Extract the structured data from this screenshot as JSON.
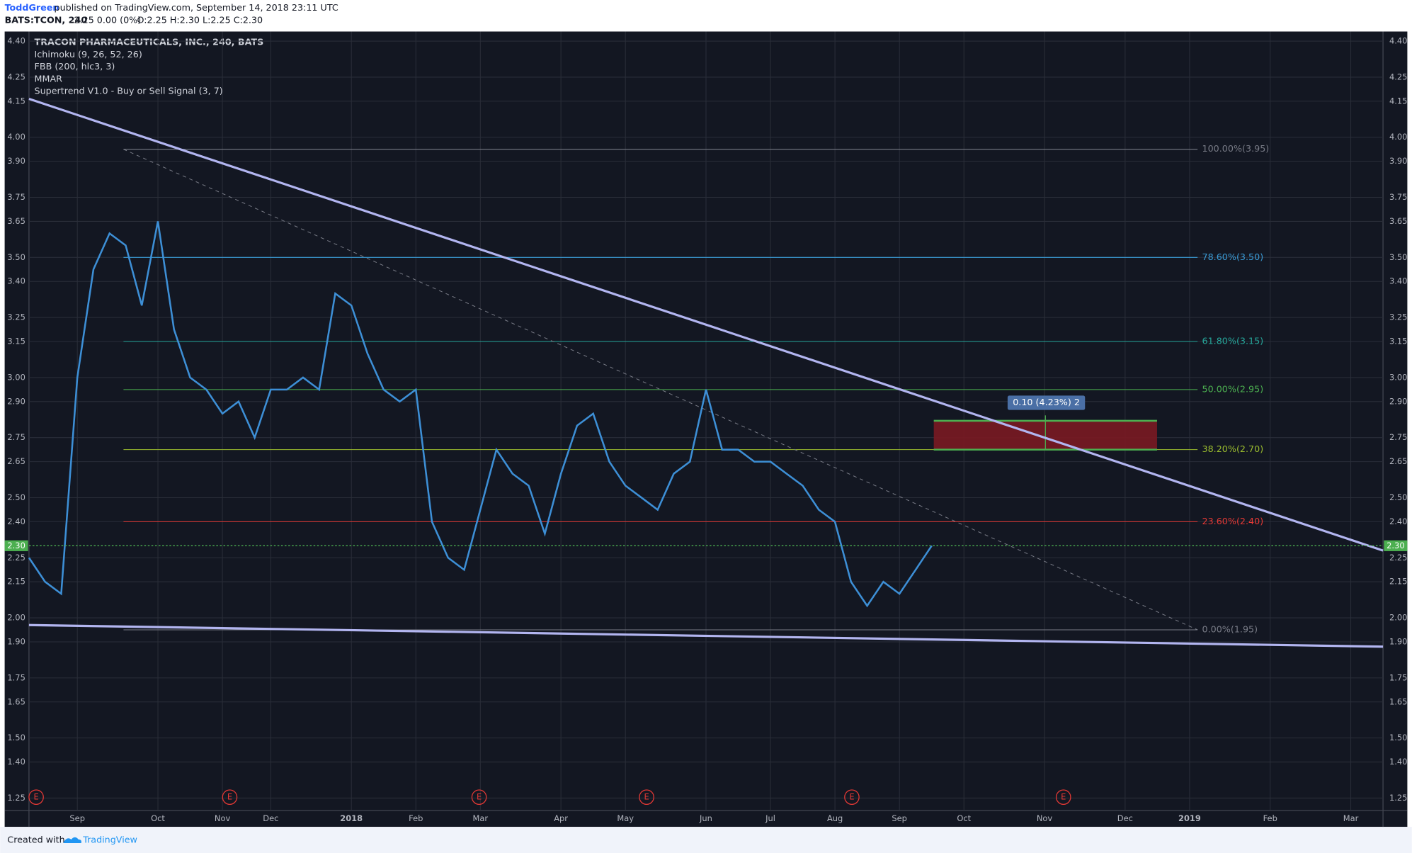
{
  "header": {
    "author": "ToddGreen",
    "published": "published on TradingView.com, September 14, 2018 23:11 UTC",
    "symbol": "BATS:TCON, 240",
    "change": "2.25 0.00 (0%)",
    "ohlc": "O:2.25 H:2.30 L:2.25 C:2.30"
  },
  "chart_data": {
    "type": "line",
    "title": "TRACON PHARMACEUTICALS, INC., 240, BATS",
    "indicators": [
      "Ichimoku (9, 26, 52, 26)",
      "FBB (200, hlc3, 3)",
      "MMAR",
      "Supertrend V1.0 - Buy or Sell Signal (3, 7)"
    ],
    "categories": [
      null,
      null,
      null,
      "Sep",
      null,
      null,
      null,
      null,
      "Oct",
      null,
      null,
      null,
      "Nov",
      null,
      null,
      "Dec",
      null,
      null,
      null,
      null,
      "2018",
      null,
      null,
      null,
      "Feb",
      null,
      null,
      null,
      "Mar",
      null,
      null,
      null,
      null,
      "Apr",
      null,
      null,
      null,
      "May",
      null,
      null,
      null,
      null,
      "Jun",
      null,
      null,
      null,
      "Jul",
      null,
      null,
      null,
      "Aug",
      null,
      null,
      null,
      "Sep",
      null,
      null,
      null,
      "Oct",
      null,
      null,
      null,
      null,
      "Nov",
      null,
      null,
      null,
      null,
      "Dec",
      null,
      null,
      null,
      "2019",
      null,
      null,
      null,
      null,
      "Feb",
      null,
      null,
      null,
      null,
      "Mar",
      null,
      null
    ],
    "values": [
      2.25,
      2.15,
      2.1,
      3.0,
      3.45,
      3.6,
      3.55,
      3.3,
      3.65,
      3.2,
      3.0,
      2.95,
      2.85,
      2.9,
      2.75,
      2.95,
      2.95,
      3.0,
      2.95,
      3.35,
      3.3,
      3.1,
      2.95,
      2.9,
      2.95,
      2.4,
      2.25,
      2.2,
      2.45,
      2.7,
      2.6,
      2.55,
      2.35,
      2.6,
      2.8,
      2.85,
      2.65,
      2.55,
      2.5,
      2.45,
      2.6,
      2.65,
      2.95,
      2.7,
      2.7,
      2.65,
      2.65,
      2.6,
      2.55,
      2.45,
      2.4,
      2.15,
      2.05,
      2.15,
      2.1,
      2.2,
      2.3,
      null,
      null,
      null,
      null,
      null,
      null,
      null,
      null,
      null,
      null,
      null,
      null,
      null,
      null,
      null,
      null,
      null,
      null,
      null,
      null,
      null,
      null,
      null,
      null,
      null,
      null,
      null,
      null
    ],
    "color": "#3d8fd6",
    "ylim": [
      1.13,
      4.44
    ],
    "yticks": [
      {
        "value": 4.4,
        "label": "4.40"
      },
      4.25,
      4.15,
      {
        "value": 4.0,
        "label": "4.00"
      },
      {
        "value": 3.9,
        "label": "3.90"
      },
      3.75,
      3.65,
      {
        "value": 3.5,
        "label": "3.50"
      },
      {
        "value": 3.4,
        "label": "3.40"
      },
      3.25,
      3.15,
      {
        "value": 3.0,
        "label": "3.00"
      },
      {
        "value": 2.9,
        "label": "2.90"
      },
      2.75,
      2.65,
      {
        "value": 2.5,
        "label": "2.50"
      },
      {
        "value": 2.4,
        "label": "2.40"
      },
      2.25,
      2.15,
      {
        "value": 2.0,
        "label": "2.00"
      },
      {
        "value": 1.9,
        "label": "1.90"
      },
      1.75,
      1.65,
      {
        "value": 1.5,
        "label": "1.50"
      },
      {
        "value": 1.4,
        "label": "1.40"
      },
      1.25
    ],
    "grid": true,
    "fib_levels": [
      {
        "value": 3.95,
        "label": "100.00%(3.95)",
        "color": "#787b86"
      },
      {
        "value": 3.5,
        "label": "78.60%(3.50)",
        "color": "#3a9bd6"
      },
      {
        "value": 3.15,
        "label": "61.80%(3.15)",
        "color": "#26a69a"
      },
      {
        "value": 2.95,
        "label": "50.00%(2.95)",
        "color": "#4caf50"
      },
      {
        "value": 2.7,
        "label": "38.20%(2.70)",
        "color": "#9bbd2e"
      },
      {
        "value": 2.4,
        "label": "23.60%(2.40)",
        "color": "#e53935"
      },
      {
        "value": 1.95,
        "label": "0.00%(1.95)",
        "color": "#787b86"
      }
    ],
    "trendlines": [
      {
        "start": 4.16,
        "end": 2.28
      },
      {
        "start": 1.97,
        "end": 1.88
      }
    ],
    "trendline_color": "#b2b5f0",
    "last_price": {
      "value": 2.3,
      "label": "2.30"
    },
    "position": {
      "label": "0.10 (4.23%) 2",
      "top": 2.82,
      "bottom": 2.7
    },
    "earnings_label": "E"
  },
  "footer": {
    "created": "Created with",
    "brand": "TradingView"
  }
}
